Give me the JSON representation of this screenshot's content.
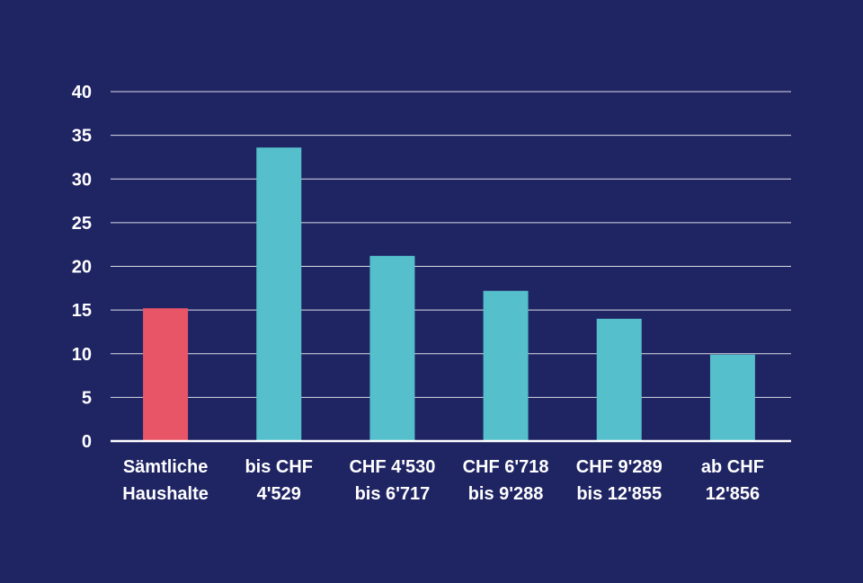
{
  "chart_data": {
    "type": "bar",
    "categories": [
      [
        "Sämtliche",
        "Haushalte"
      ],
      [
        "bis CHF",
        "4'529"
      ],
      [
        "CHF 4'530",
        "bis 6'717"
      ],
      [
        "CHF 6'718",
        "bis 9'288"
      ],
      [
        "CHF 9'289",
        "bis 12'855"
      ],
      [
        "ab CHF",
        "12'856"
      ]
    ],
    "values": [
      15.2,
      33.6,
      21.2,
      17.2,
      14.0,
      9.9
    ],
    "bar_colors": [
      "#e85566",
      "#55bfcb",
      "#55bfcb",
      "#55bfcb",
      "#55bfcb",
      "#55bfcb"
    ],
    "yticks": [
      "0",
      "5",
      "10",
      "15",
      "20",
      "25",
      "30",
      "35",
      "40"
    ],
    "ylim": [
      0,
      40
    ],
    "grid": true,
    "title": "",
    "xlabel": "",
    "ylabel": ""
  },
  "colors": {
    "background": "#1f2463",
    "gridline": "#ffffff",
    "text": "#ffffff"
  }
}
